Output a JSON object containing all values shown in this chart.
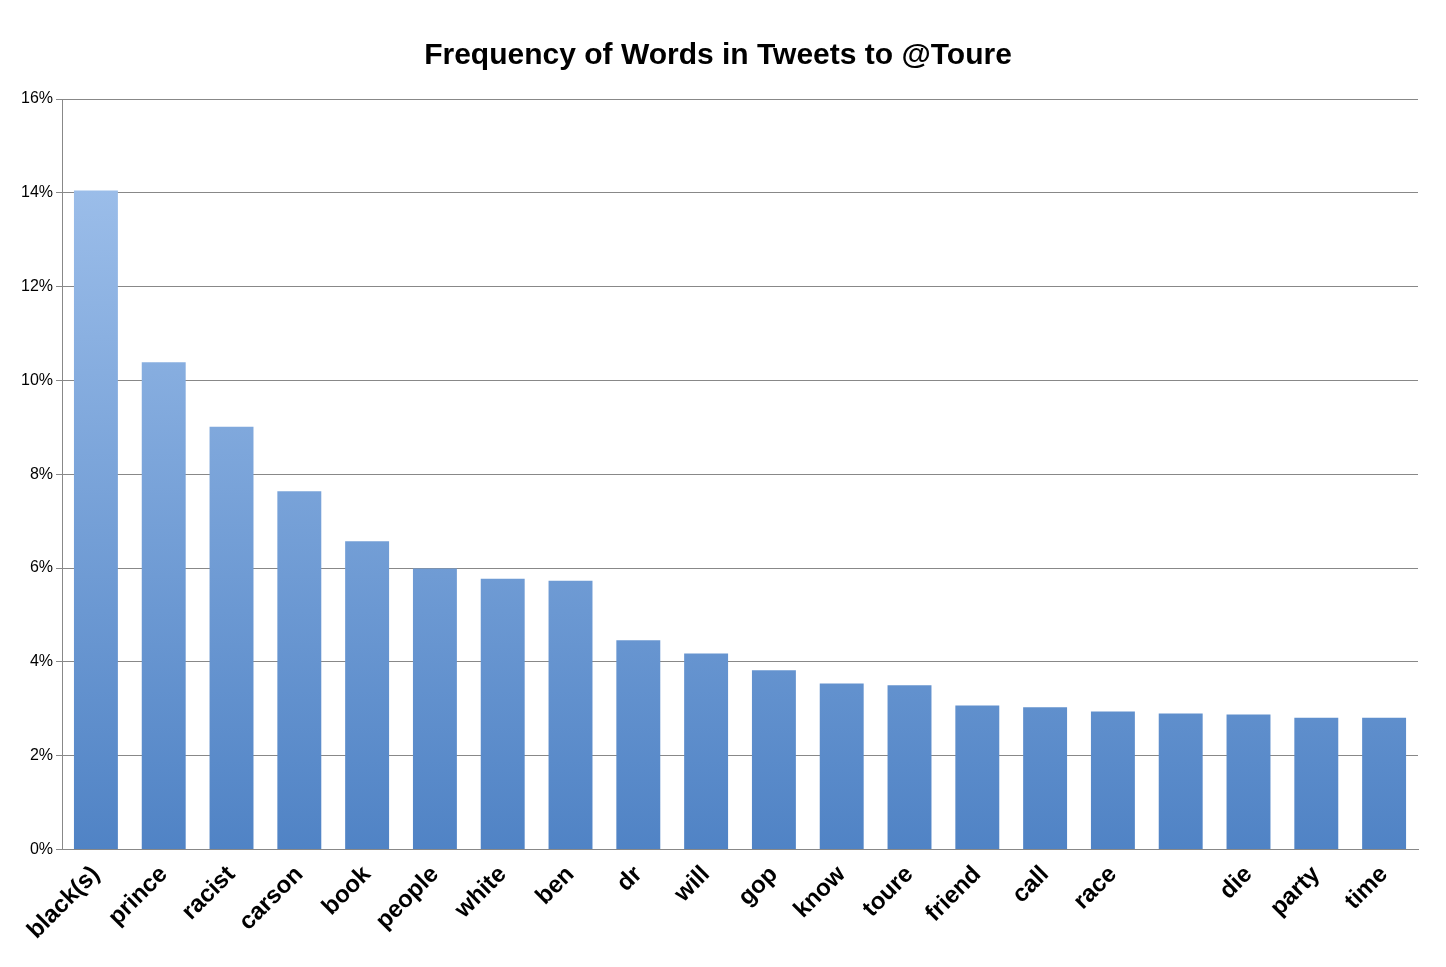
{
  "chart_data": {
    "type": "bar",
    "title": "Frequency of Words in Tweets to @Toure",
    "categories": [
      "black(s)",
      "prince",
      "racist",
      "carson",
      "book",
      "people",
      "white",
      "ben",
      "dr",
      "will",
      "gop",
      "know",
      "toure",
      "friend",
      "call",
      "race",
      null,
      "die",
      "party",
      "time"
    ],
    "values": [
      14.05,
      10.39,
      9.01,
      7.64,
      6.57,
      5.99,
      5.77,
      5.73,
      4.46,
      4.18,
      3.82,
      3.54,
      3.5,
      3.07,
      3.03,
      2.94,
      2.9,
      2.88,
      2.81,
      2.81
    ],
    "color": "#5b95e0",
    "ylim": [
      0,
      16
    ],
    "yticks": [
      {
        "value": 0,
        "label": "0%"
      },
      {
        "value": 2,
        "label": "2%"
      },
      {
        "value": 4,
        "label": "4%"
      },
      {
        "value": 6,
        "label": "6%"
      },
      {
        "value": 8,
        "label": "8%"
      },
      {
        "value": 10,
        "label": "10%"
      },
      {
        "value": 12,
        "label": "12%"
      },
      {
        "value": 14,
        "label": "14%"
      },
      {
        "value": 16,
        "label": "16%"
      }
    ],
    "grid": "y",
    "legend": false
  }
}
